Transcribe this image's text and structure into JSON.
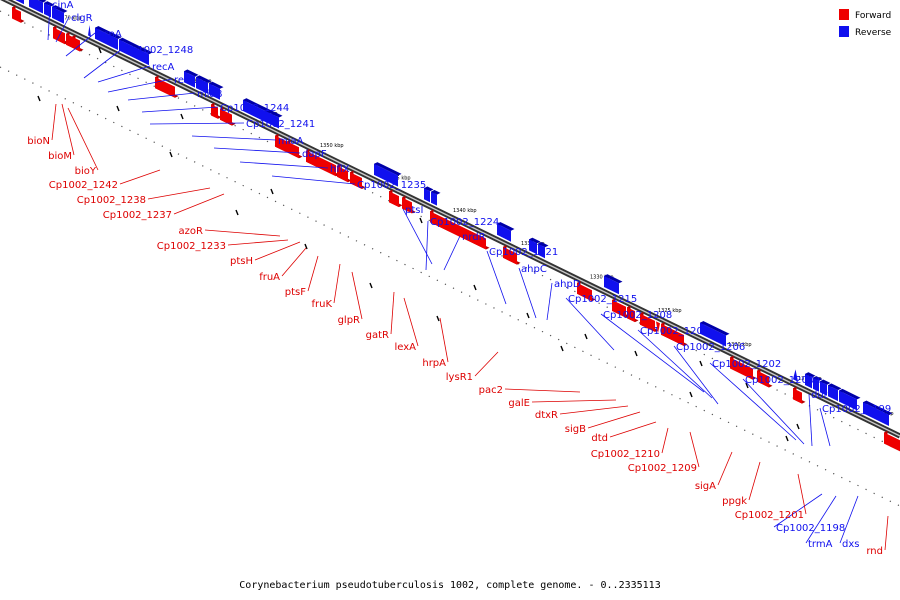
{
  "caption": "Corynebacterium pseudotuberculosis 1002, complete genome. - 0..2335113",
  "legend": [
    {
      "label": "Forward",
      "color": "#ee0000"
    },
    {
      "label": "Reverse",
      "color": "#1010ee"
    }
  ],
  "scale_ticks": [
    "1370 kbp",
    "1365 kbp",
    "1360 kbp",
    "1355 kbp",
    "1350 kbp",
    "1345 kbp",
    "1340 kbp",
    "1335 kbp",
    "1330 kbp",
    "1325 kbp",
    "1320 kbp",
    "1315 kbp",
    "1310 kbp"
  ],
  "reverse_genes": [
    "cinA",
    "clgR",
    "pspA",
    "Cp1002_1248",
    "recA",
    "recX",
    "miaB",
    "Cp1002_1244",
    "Cp1002_1241",
    "miaA",
    "dapF",
    "hflX",
    "Cp1002_1235",
    "ptsI",
    "Cp1002_1224",
    "nrdR",
    "Cp1002_1221",
    "ahpC",
    "ahpD",
    "Cp1002_1215",
    "Cp1002_1208",
    "Cp1002_1207",
    "Cp1002_1206",
    "Cp1002_1202",
    "Cp1002_1200a",
    "dut",
    "Cp1002_1199",
    "Cp1002_1198",
    "trmA",
    "dxs"
  ],
  "forward_genes": [
    "bioN",
    "bioM",
    "bioY",
    "Cp1002_1242",
    "Cp1002_1238",
    "Cp1002_1237",
    "azoR",
    "Cp1002_1233",
    "ptsH",
    "fruA",
    "ptsF",
    "fruK",
    "glpR",
    "gatR",
    "lexA",
    "hrpA",
    "lysR1",
    "pac2",
    "galE",
    "dtxR",
    "sigB",
    "dtd",
    "Cp1002_1210",
    "Cp1002_1209",
    "sigA",
    "ppgk",
    "Cp1002_1201",
    "rnd"
  ]
}
